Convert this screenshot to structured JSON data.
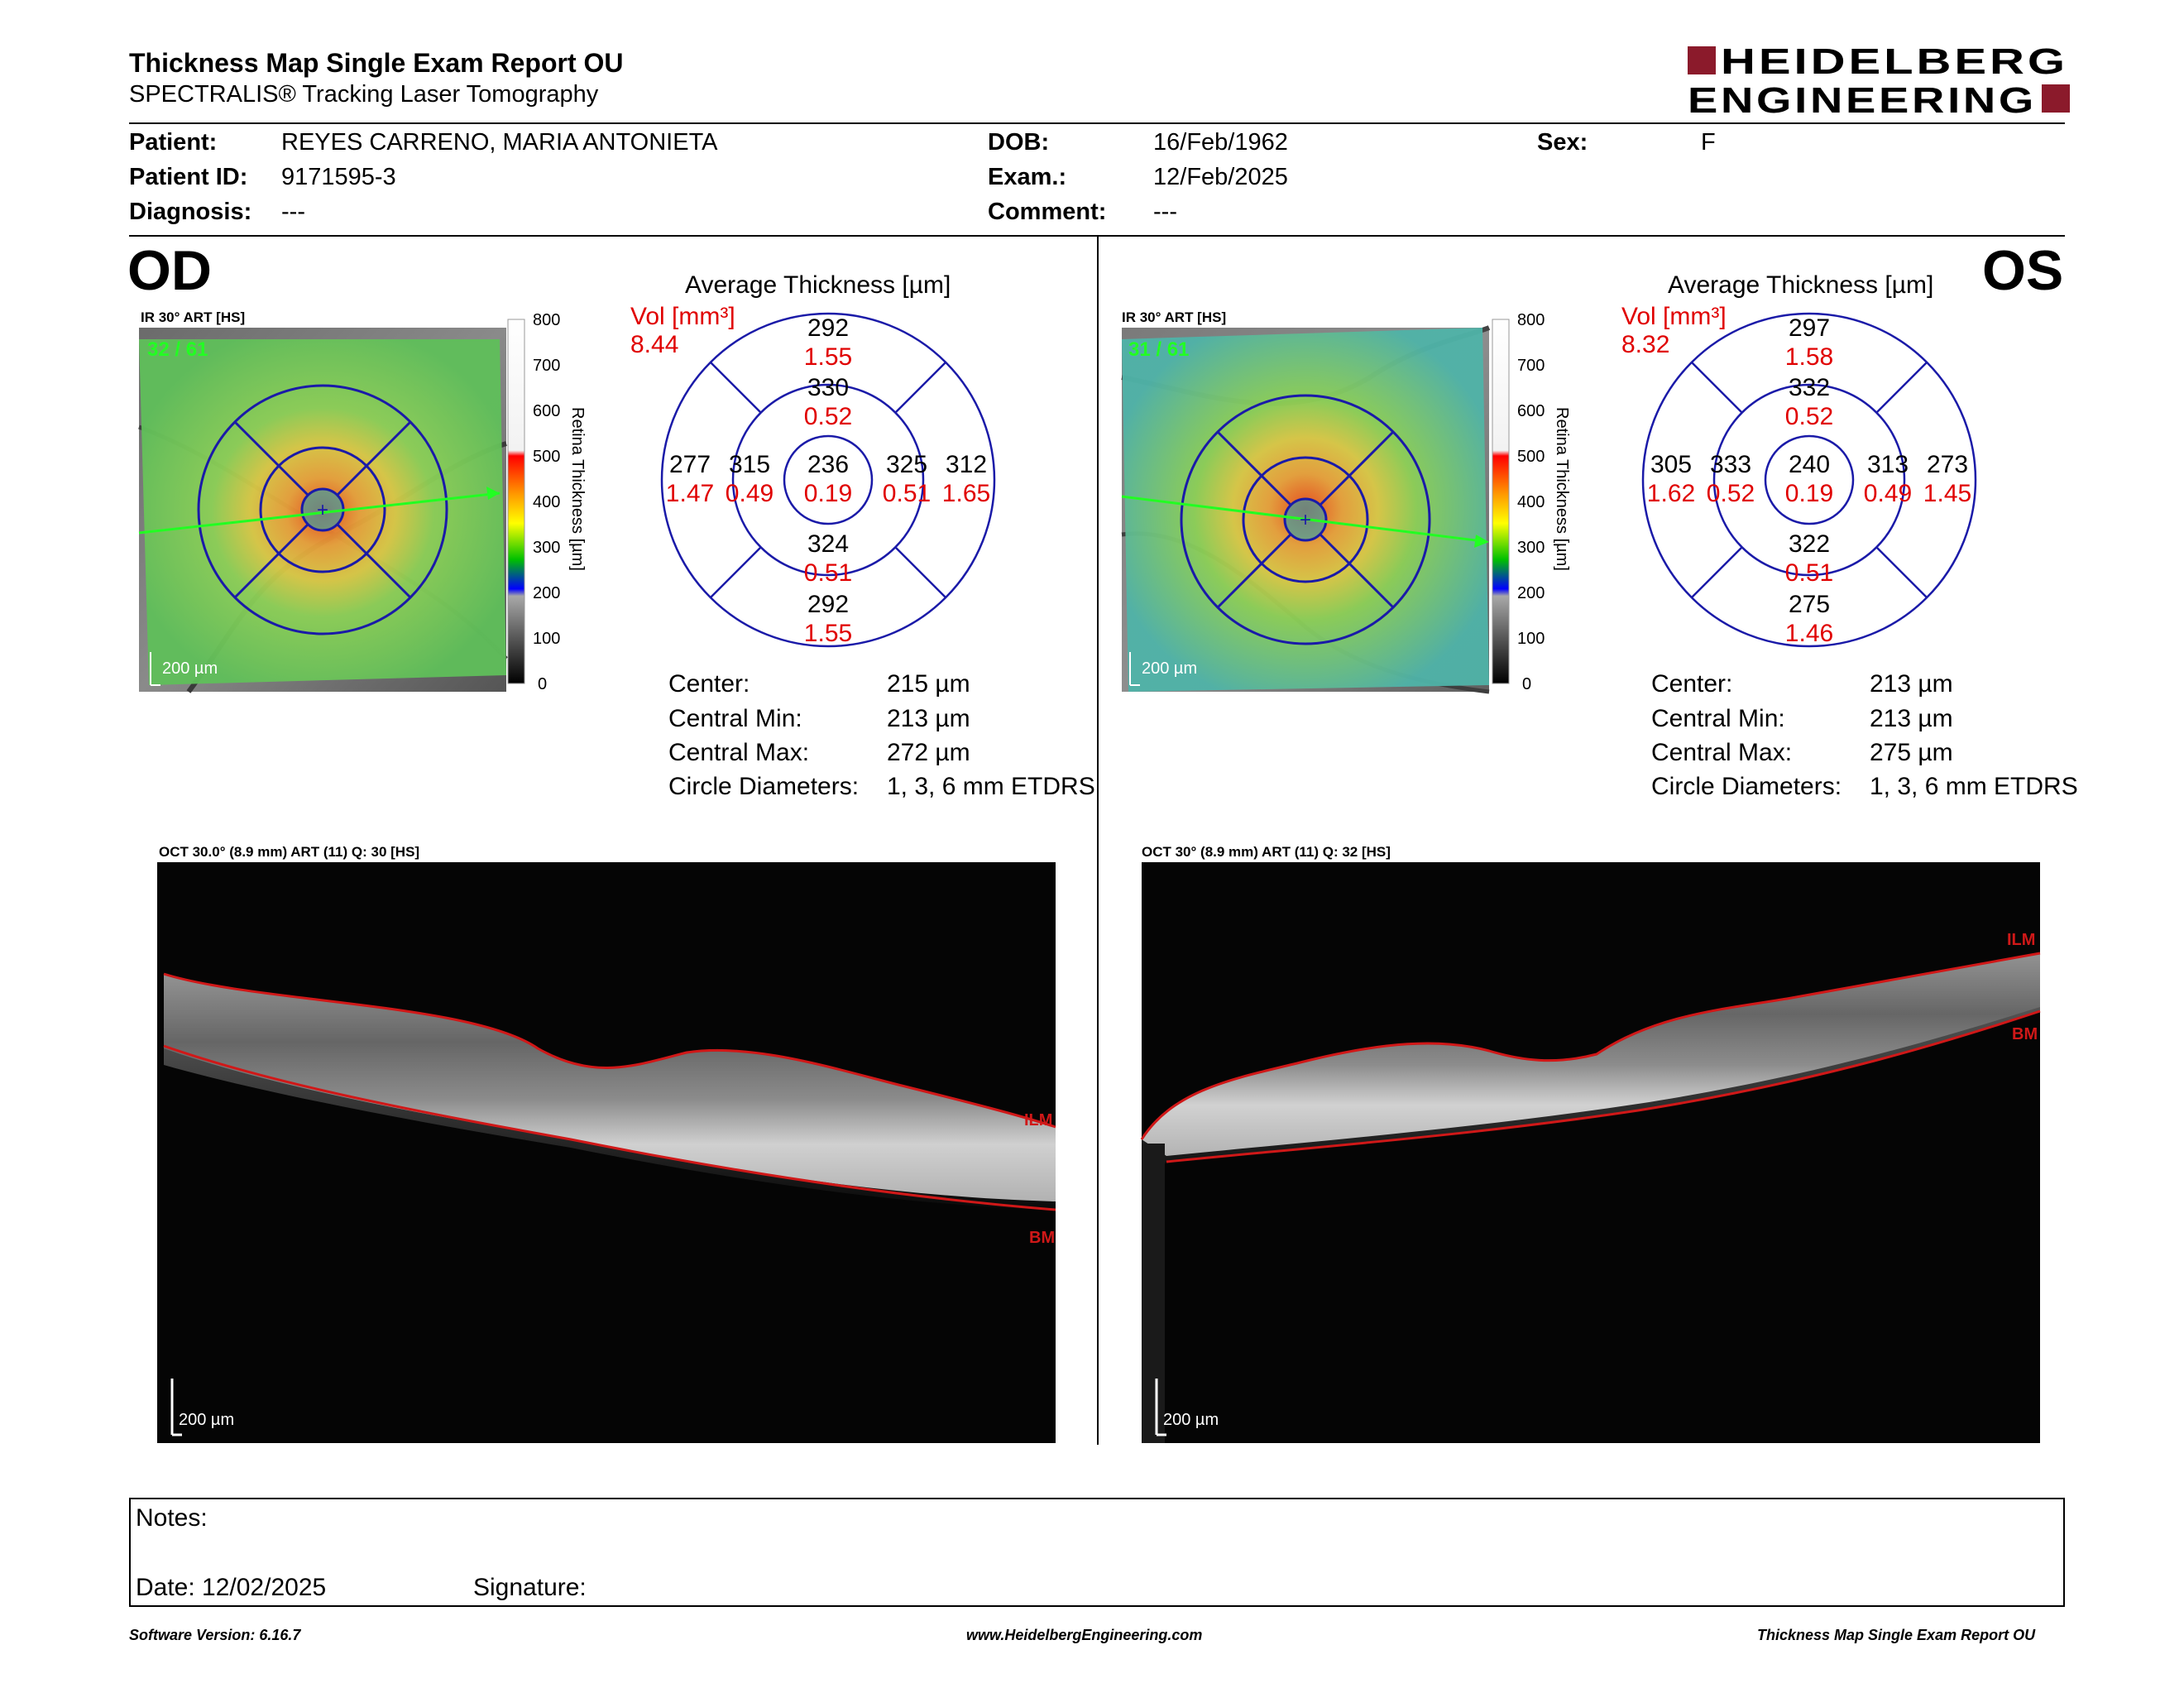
{
  "header": {
    "title": "Thickness Map Single Exam Report OU",
    "subtitle": "SPECTRALIS® Tracking Laser Tomography",
    "logo_line1": "HEIDELBERG",
    "logo_line2": "ENGINEERING"
  },
  "patient": {
    "patient_label": "Patient:",
    "patient_value": "REYES CARRENO, MARIA ANTONIETA",
    "id_label": "Patient ID:",
    "id_value": "9171595-3",
    "diag_label": "Diagnosis:",
    "diag_value": "---",
    "dob_label": "DOB:",
    "dob_value": "16/Feb/1962",
    "exam_label": "Exam.:",
    "exam_value": "12/Feb/2025",
    "comment_label": "Comment:",
    "comment_value": "---",
    "sex_label": "Sex:",
    "sex_value": "F"
  },
  "colorbar": {
    "label": "Retina Thickness [µm]",
    "ticks": [
      "800",
      "700",
      "600",
      "500",
      "400",
      "300",
      "200",
      "100",
      "0"
    ]
  },
  "od": {
    "eye": "OD",
    "fundus_header": "IR 30° ART [HS]",
    "frames": "32 / 61",
    "scale": "200 µm",
    "avg_title": "Average Thickness [µm]",
    "vol_label": "Vol [mm³]",
    "vol_value": "8.44",
    "grid": {
      "center": {
        "t": "236",
        "v": "0.19"
      },
      "inner_sup": {
        "t": "330",
        "v": "0.52"
      },
      "inner_inf": {
        "t": "324",
        "v": "0.51"
      },
      "inner_left": {
        "t": "315",
        "v": "0.49"
      },
      "inner_right": {
        "t": "325",
        "v": "0.51"
      },
      "outer_sup": {
        "t": "292",
        "v": "1.55"
      },
      "outer_inf": {
        "t": "292",
        "v": "1.55"
      },
      "outer_left": {
        "t": "277",
        "v": "1.47"
      },
      "outer_right": {
        "t": "312",
        "v": "1.65"
      }
    },
    "stats": {
      "center_label": "Center:",
      "center_value": "215 µm",
      "min_label": "Central Min:",
      "min_value": "213 µm",
      "max_label": "Central Max:",
      "max_value": "272 µm",
      "diam_label": "Circle Diameters:",
      "diam_value": "1, 3, 6 mm ETDRS"
    },
    "oct_header": "OCT 30.0° (8.9 mm) ART (11) Q: 30 [HS]",
    "oct_scale": "200 µm",
    "ilm": "ILM",
    "bm": "BM"
  },
  "os": {
    "eye": "OS",
    "fundus_header": "IR 30° ART [HS]",
    "frames": "31 / 61",
    "scale": "200 µm",
    "avg_title": "Average Thickness [µm]",
    "vol_label": "Vol [mm³]",
    "vol_value": "8.32",
    "grid": {
      "center": {
        "t": "240",
        "v": "0.19"
      },
      "inner_sup": {
        "t": "332",
        "v": "0.52"
      },
      "inner_inf": {
        "t": "322",
        "v": "0.51"
      },
      "inner_left": {
        "t": "333",
        "v": "0.52"
      },
      "inner_right": {
        "t": "313",
        "v": "0.49"
      },
      "outer_sup": {
        "t": "297",
        "v": "1.58"
      },
      "outer_inf": {
        "t": "275",
        "v": "1.46"
      },
      "outer_left": {
        "t": "305",
        "v": "1.62"
      },
      "outer_right": {
        "t": "273",
        "v": "1.45"
      }
    },
    "stats": {
      "center_label": "Center:",
      "center_value": "213 µm",
      "min_label": "Central Min:",
      "min_value": "213 µm",
      "max_label": "Central Max:",
      "max_value": "275 µm",
      "diam_label": "Circle Diameters:",
      "diam_value": "1, 3, 6 mm ETDRS"
    },
    "oct_header": "OCT 30° (8.9 mm) ART (11) Q: 32 [HS]",
    "oct_scale": "200 µm",
    "ilm": "ILM",
    "bm": "BM"
  },
  "notes": {
    "notes_label": "Notes:",
    "date_label": "Date: 12/02/2025",
    "signature_label": "Signature:"
  },
  "footer": {
    "software": "Software Version: 6.16.7",
    "website": "www.HeidelbergEngineering.com",
    "report": "Thickness Map Single Exam Report OU"
  },
  "colors": {
    "grid_blue": "#1a1aa8",
    "value_red": "#e00000",
    "logo_red": "#8b1a2b",
    "oct_line_red": "#d01818",
    "overlay_green": "#22ff22"
  }
}
